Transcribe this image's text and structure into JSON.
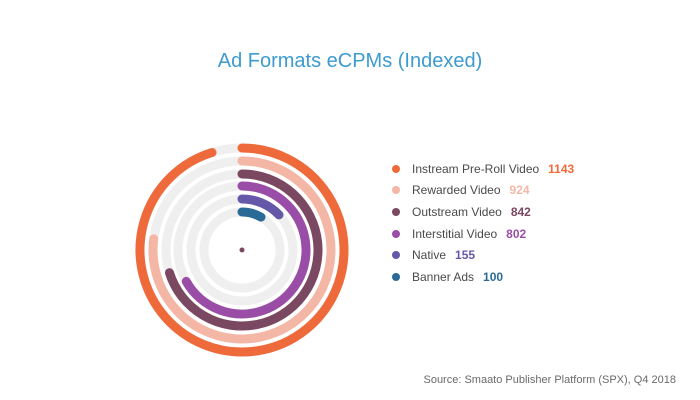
{
  "chart_data": {
    "type": "radial-bar",
    "title": "Ad Formats eCPMs (Indexed)",
    "max_value": 1200,
    "series": [
      {
        "name": "Instream Pre-Roll Video",
        "value": 1143,
        "color": "#ef6a3a"
      },
      {
        "name": "Rewarded Video",
        "value": 924,
        "color": "#f4b7a6"
      },
      {
        "name": "Outstream Video",
        "value": 842,
        "color": "#7a4860"
      },
      {
        "name": "Interstitial Video",
        "value": 802,
        "color": "#9a4da6"
      },
      {
        "name": "Native",
        "value": 155,
        "color": "#6558a8"
      },
      {
        "name": "Banner Ads",
        "value": 100,
        "color": "#2a6a96"
      }
    ],
    "track_color": "#efefef",
    "source": "Source: Smaato Publisher Platform (SPX), Q4 2018"
  }
}
